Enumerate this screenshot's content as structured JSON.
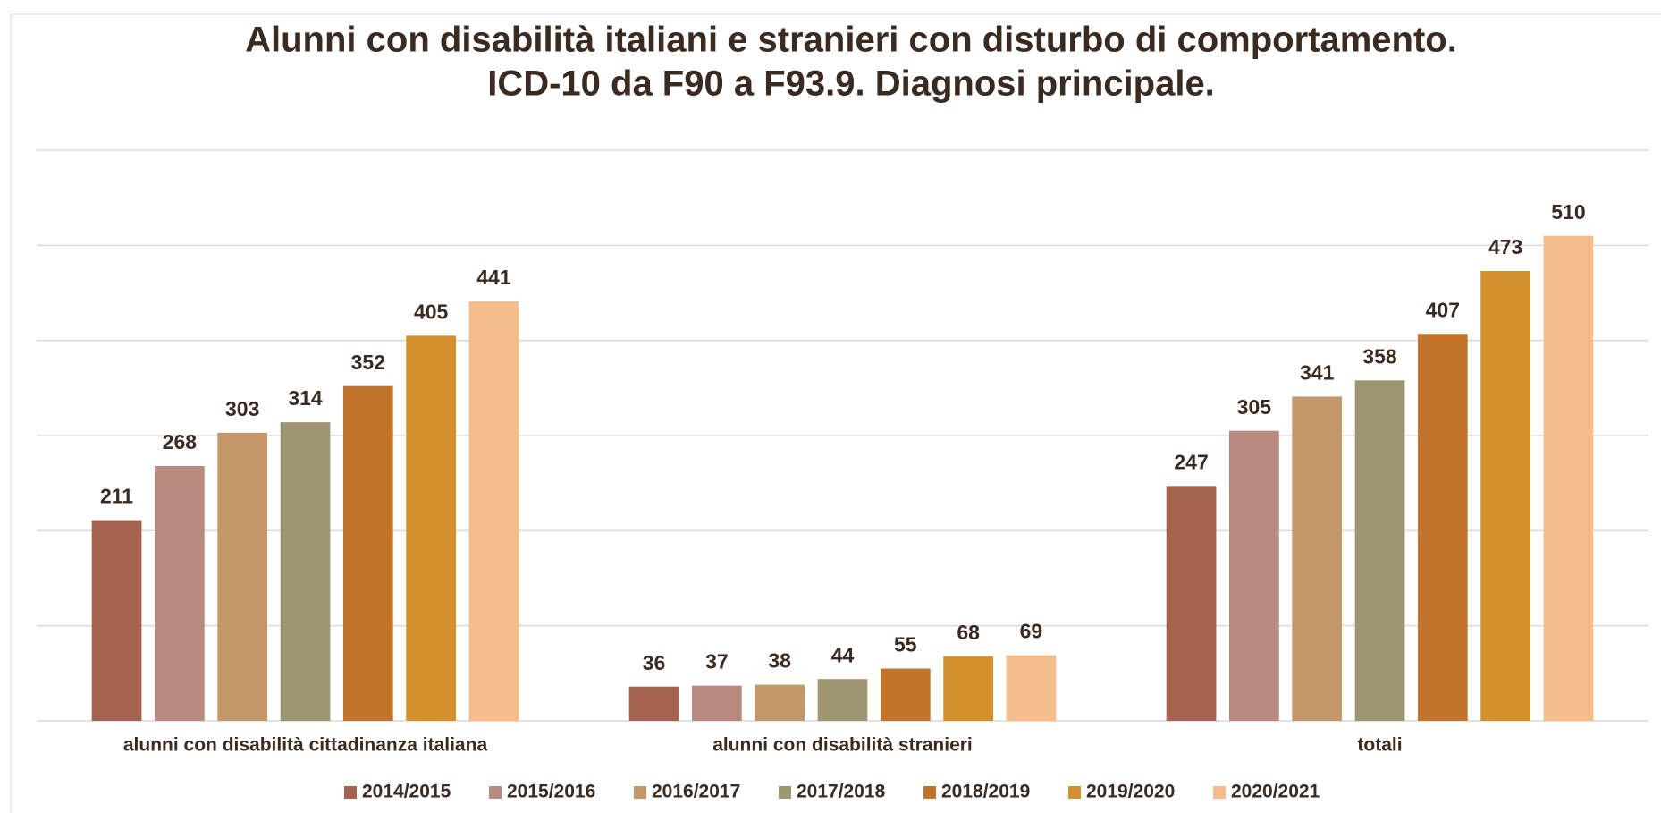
{
  "chart_data": {
    "type": "bar",
    "title": [
      "Alunni con disabilità italiani e stranieri con disturbo di comportamento.",
      "ICD-10 da F90 a F93.9. Diagnosi principale."
    ],
    "categories": [
      "alunni con disabilità cittadinanza italiana",
      "alunni con disabilità stranieri",
      "totali"
    ],
    "series": [
      {
        "name": "2014/2015",
        "color": "#a5634f",
        "values": [
          211,
          36,
          247
        ]
      },
      {
        "name": "2015/2016",
        "color": "#b88a80",
        "values": [
          268,
          37,
          305
        ]
      },
      {
        "name": "2016/2017",
        "color": "#c4986b",
        "values": [
          303,
          38,
          341
        ]
      },
      {
        "name": "2017/2018",
        "color": "#a09573",
        "values": [
          314,
          44,
          358
        ]
      },
      {
        "name": "2018/2019",
        "color": "#c2752a",
        "values": [
          352,
          55,
          407
        ]
      },
      {
        "name": "2019/2020",
        "color": "#d4902a",
        "values": [
          405,
          68,
          473
        ]
      },
      {
        "name": "2020/2021",
        "color": "#f5bd8a",
        "values": [
          441,
          69,
          510
        ]
      }
    ],
    "ylim": [
      0,
      600
    ],
    "yticks": [
      0,
      100,
      200,
      300,
      400,
      500,
      600
    ],
    "grid": true,
    "legend": "bottom"
  }
}
